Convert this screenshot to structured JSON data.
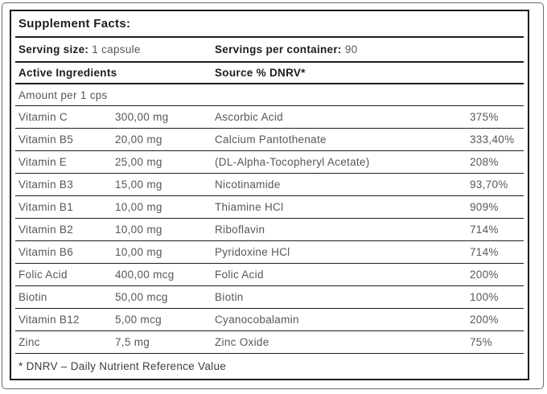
{
  "label": {
    "title": "Supplement Facts:",
    "serving": {
      "size_label": "Serving size:",
      "size_value": "1 capsule",
      "container_label": "Servings per container:",
      "container_value": "90"
    },
    "column_headers": {
      "active_ingredients": "Active Ingredients",
      "source": "Source % DNRV*"
    },
    "amount_header": "Amount per 1 cps",
    "rows": [
      {
        "name": "Vitamin C",
        "amount": "300,00 mg",
        "source": "Ascorbic Acid",
        "dnrv": "375%"
      },
      {
        "name": "Vitamin B5",
        "amount": "20,00 mg",
        "source": "Calcium Pantothenate",
        "dnrv": "333,40%"
      },
      {
        "name": "Vitamin E",
        "amount": "25,00 mg",
        "source": "(DL-Alpha-Tocopheryl Acetate)",
        "dnrv": "208%"
      },
      {
        "name": "Vitamin B3",
        "amount": "15,00 mg",
        "source": "Nicotinamide",
        "dnrv": "93,70%"
      },
      {
        "name": "Vitamin B1",
        "amount": "10,00 mg",
        "source": "Thiamine HCl",
        "dnrv": "909%"
      },
      {
        "name": "Vitamin B2",
        "amount": "10,00 mg",
        "source": "Riboflavin",
        "dnrv": "714%"
      },
      {
        "name": "Vitamin B6",
        "amount": "10,00 mg",
        "source": "Pyridoxine HCl",
        "dnrv": "714%"
      },
      {
        "name": "Folic Acid",
        "amount": "400,00 mcg",
        "source": "Folic Acid",
        "dnrv": "200%"
      },
      {
        "name": "Biotin",
        "amount": "50,00 mcg",
        "source": "Biotin",
        "dnrv": "100%"
      },
      {
        "name": "Vitamin B12",
        "amount": "5,00 mcg",
        "source": "Cyanocobalamin",
        "dnrv": "200%"
      },
      {
        "name": "Zinc",
        "amount": "7,5 mg",
        "source": "Zinc Oxide",
        "dnrv": "75%"
      }
    ],
    "footnote": "* DNRV – Daily Nutrient Reference Value"
  },
  "colors": {
    "text_dark": "#1d1d1b",
    "text_gray": "#575756",
    "rule_line": "#1d1d1b",
    "outer_frame": "#6b6b6b",
    "background": "#ffffff"
  }
}
